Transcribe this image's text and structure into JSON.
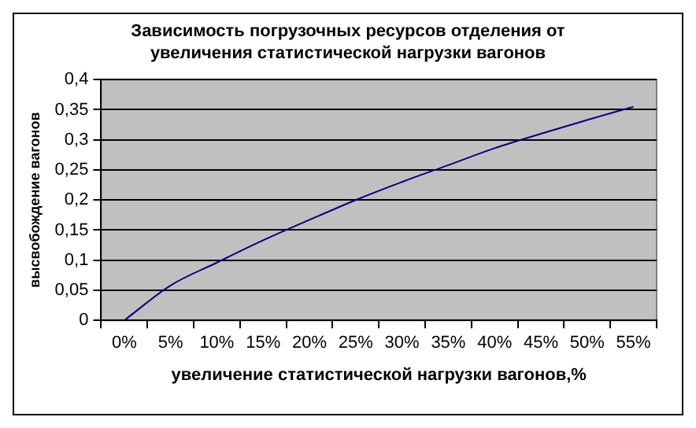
{
  "chart_data": {
    "type": "line",
    "title": "Зависимость погрузочных ресурсов отделения от увеличения статистической нагрузки вагонов",
    "xlabel": "увеличение статистической нагрузки вагонов,%",
    "ylabel": "высвобождение вагонов",
    "categories": [
      "0%",
      "5%",
      "10%",
      "15%",
      "20%",
      "25%",
      "30%",
      "35%",
      "40%",
      "45%",
      "50%",
      "55%"
    ],
    "series": [
      {
        "color": "#000080",
        "values": [
          0,
          0.058,
          0.096,
          0.133,
          0.167,
          0.2,
          0.23,
          0.258,
          0.286,
          0.31,
          0.333,
          0.355
        ]
      }
    ],
    "ylim": [
      0,
      0.4
    ],
    "yticks": [
      0,
      {
        "value": 0.05,
        "label": "0,05"
      },
      {
        "value": 0.1,
        "label": "0,1"
      },
      {
        "value": 0.15,
        "label": "0,15"
      },
      {
        "value": 0.2,
        "label": "0,2"
      },
      {
        "value": 0.25,
        "label": "0,25"
      },
      {
        "value": 0.3,
        "label": "0,3"
      },
      {
        "value": 0.35,
        "label": "0,35"
      },
      {
        "value": 0.4,
        "label": "0,4"
      }
    ],
    "grid": "y",
    "legend": false,
    "marker": "none",
    "line_style": "solid"
  }
}
